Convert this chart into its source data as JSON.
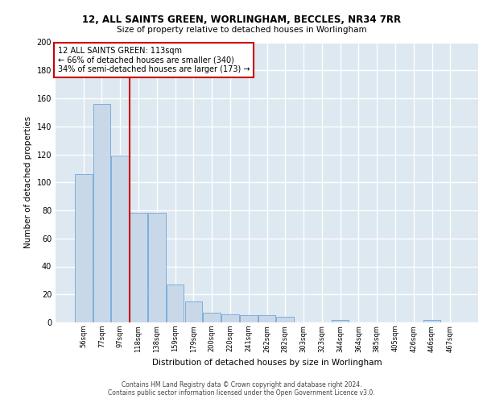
{
  "title": "12, ALL SAINTS GREEN, WORLINGHAM, BECCLES, NR34 7RR",
  "subtitle": "Size of property relative to detached houses in Worlingham",
  "xlabel": "Distribution of detached houses by size in Worlingham",
  "ylabel": "Number of detached properties",
  "bar_color": "#c8d8e8",
  "bar_edge_color": "#5b9bd5",
  "background_color": "#dde8f0",
  "grid_color": "#ffffff",
  "categories": [
    "56sqm",
    "77sqm",
    "97sqm",
    "118sqm",
    "138sqm",
    "159sqm",
    "179sqm",
    "200sqm",
    "220sqm",
    "241sqm",
    "262sqm",
    "282sqm",
    "303sqm",
    "323sqm",
    "344sqm",
    "364sqm",
    "385sqm",
    "405sqm",
    "426sqm",
    "446sqm",
    "467sqm"
  ],
  "values": [
    106,
    156,
    119,
    78,
    78,
    27,
    15,
    7,
    6,
    5,
    5,
    4,
    0,
    0,
    2,
    0,
    0,
    0,
    0,
    2,
    0
  ],
  "vline_color": "#cc0000",
  "annotation_text": "12 ALL SAINTS GREEN: 113sqm\n← 66% of detached houses are smaller (340)\n34% of semi-detached houses are larger (173) →",
  "annotation_box_color": "#ffffff",
  "annotation_box_edge": "#cc0000",
  "ylim": [
    0,
    200
  ],
  "yticks": [
    0,
    20,
    40,
    60,
    80,
    100,
    120,
    140,
    160,
    180,
    200
  ],
  "footer_line1": "Contains HM Land Registry data © Crown copyright and database right 2024.",
  "footer_line2": "Contains public sector information licensed under the Open Government Licence v3.0."
}
